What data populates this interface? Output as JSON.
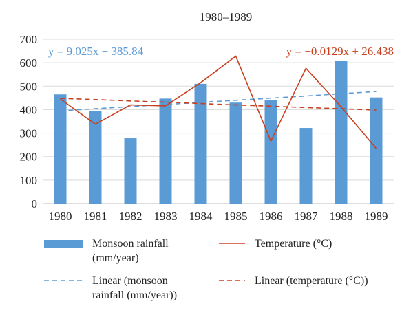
{
  "chart_data": {
    "type": "bar",
    "title": "1980–1989",
    "categories": [
      "1980",
      "1981",
      "1982",
      "1983",
      "1984",
      "1985",
      "1986",
      "1987",
      "1988",
      "1989"
    ],
    "ylim": [
      0,
      700
    ],
    "yticks": [
      0,
      100,
      200,
      300,
      400,
      500,
      600,
      700
    ],
    "grid": true,
    "series": [
      {
        "name": "Monsoon rainfall (mm/year)",
        "kind": "bar",
        "color": "#5b9bd5",
        "values": [
          465,
          393,
          278,
          447,
          510,
          430,
          440,
          322,
          607,
          452
        ]
      },
      {
        "name": "Temperature (°C)",
        "kind": "line",
        "color": "#c8401f",
        "values": [
          446,
          338,
          420,
          416,
          515,
          628,
          266,
          576,
          412,
          235
        ]
      },
      {
        "name": "Linear (monsoon rainfall (mm/year))",
        "kind": "trend",
        "style": "dashed",
        "color": "#5b9bd5",
        "values": [
          395,
          404,
          413,
          422,
          431,
          440,
          449,
          458,
          468,
          477
        ]
      },
      {
        "name": "Linear (temperature (°C))",
        "kind": "trend",
        "style": "dashed",
        "color": "#c8401f",
        "values": [
          448,
          443,
          437,
          432,
          426,
          420,
          415,
          409,
          404,
          398
        ]
      }
    ],
    "annotations": {
      "blue_equation": "y = 9.025x + 385.84",
      "red_equation": "y = −0.0129x + 26.438"
    },
    "legend": [
      {
        "label": "Monsoon rainfall\n(mm/year)",
        "swatch": "bar",
        "color": "#5b9bd5"
      },
      {
        "label": "Temperature (°C)",
        "swatch": "line",
        "color": "#c8401f"
      },
      {
        "label": "Linear (monsoon\nrainfall (mm/year))",
        "swatch": "dash",
        "color": "#5b9bd5"
      },
      {
        "label": "Linear (temperature (°C))",
        "swatch": "dash",
        "color": "#c8401f"
      }
    ]
  }
}
